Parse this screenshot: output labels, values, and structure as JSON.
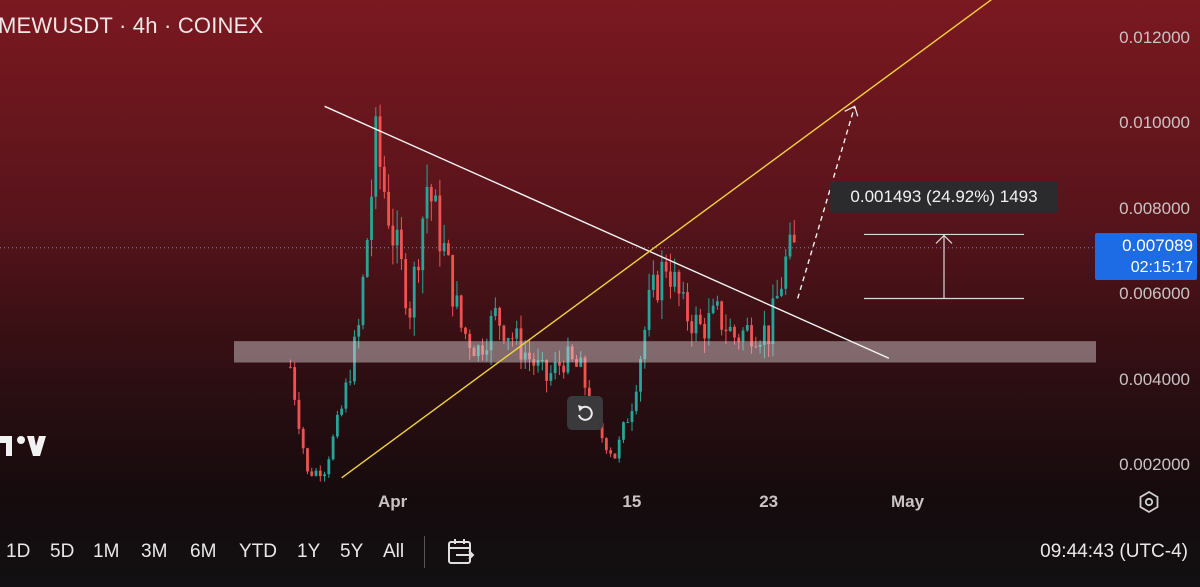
{
  "header": {
    "title": "MEWUSDT · 4h · COINEX"
  },
  "measure": {
    "label": "0.001493 (24.92%) 1493"
  },
  "last_price": {
    "price": "0.007089",
    "countdown": "02:15:17"
  },
  "bottom_bar": {
    "ranges": [
      "1D",
      "5D",
      "1M",
      "3M",
      "6M",
      "YTD",
      "1Y",
      "5Y",
      "All"
    ],
    "clock": "09:44:43 (UTC-4)"
  },
  "icons": {
    "logo": "tradingview-logo",
    "reset": "reset-icon",
    "settings": "gear-icon",
    "goto_date": "calendar-arrow-icon"
  },
  "colors": {
    "up": "#26a69a",
    "down": "#ef5350",
    "trendline": "#f5f5f5",
    "support_line": "#f2d13c",
    "accent": "#1e6be6"
  },
  "chart_data": {
    "type": "candlestick",
    "symbol": "MEWUSDT",
    "interval": "4h",
    "exchange": "COINEX",
    "ylim": [
      0.0016,
      0.0129
    ],
    "yticks": [
      "0.012000",
      "0.010000",
      "0.008000",
      "0.006000",
      "0.004000",
      "0.002000"
    ],
    "xticks": [
      "Apr",
      "15",
      "23",
      "May"
    ],
    "x_range": [
      "2024-03-26",
      "2024-05-03"
    ],
    "price_approx": [
      {
        "date": "2024-03-26",
        "price": 0.0043
      },
      {
        "date": "2024-03-27",
        "price": 0.0018
      },
      {
        "date": "2024-03-28",
        "price": 0.0019
      },
      {
        "date": "2024-03-29",
        "price": 0.0033
      },
      {
        "date": "2024-03-30",
        "price": 0.0052
      },
      {
        "date": "2024-03-31",
        "price": 0.0095
      },
      {
        "date": "2024-04-01",
        "price": 0.0074
      },
      {
        "date": "2024-04-02",
        "price": 0.0057
      },
      {
        "date": "2024-04-03",
        "price": 0.0086
      },
      {
        "date": "2024-04-04",
        "price": 0.007
      },
      {
        "date": "2024-04-05",
        "price": 0.0052
      },
      {
        "date": "2024-04-06",
        "price": 0.0047
      },
      {
        "date": "2024-04-07",
        "price": 0.0055
      },
      {
        "date": "2024-04-08",
        "price": 0.005
      },
      {
        "date": "2024-04-09",
        "price": 0.0045
      },
      {
        "date": "2024-04-10",
        "price": 0.004
      },
      {
        "date": "2024-04-11",
        "price": 0.0045
      },
      {
        "date": "2024-04-12",
        "price": 0.0042
      },
      {
        "date": "2024-04-13",
        "price": 0.0028
      },
      {
        "date": "2024-04-14",
        "price": 0.0022
      },
      {
        "date": "2024-04-15",
        "price": 0.0035
      },
      {
        "date": "2024-04-16",
        "price": 0.0058
      },
      {
        "date": "2024-04-17",
        "price": 0.0068
      },
      {
        "date": "2024-04-18",
        "price": 0.0056
      },
      {
        "date": "2024-04-19",
        "price": 0.0052
      },
      {
        "date": "2024-04-20",
        "price": 0.0055
      },
      {
        "date": "2024-04-21",
        "price": 0.005
      },
      {
        "date": "2024-04-22",
        "price": 0.0052
      },
      {
        "date": "2024-04-23",
        "price": 0.0051
      },
      {
        "date": "2024-04-24",
        "price": 0.0068
      },
      {
        "date": "2024-04-24T16",
        "price": 0.0071
      }
    ],
    "ohlc_extremes": {
      "high": 0.0098,
      "low": 0.0017
    },
    "drawings": {
      "descending_trendline": [
        {
          "date": "2024-03-28",
          "price": 0.0104
        },
        {
          "date": "2024-04-30",
          "price": 0.0045
        }
      ],
      "ascending_trendline": [
        {
          "date": "2024-03-29",
          "price": 0.0017
        },
        {
          "date": "2024-05-06",
          "price": 0.0129
        }
      ],
      "support_zone": [
        0.0044,
        0.0049
      ],
      "projection": [
        {
          "date": "2024-04-24T16",
          "price": 0.0059
        },
        {
          "date": "2024-04-28",
          "price": 0.0104
        }
      ],
      "price_range_measure": {
        "from": 0.0059,
        "to": 0.0074,
        "label": "0.001493 (24.92%) 1493"
      },
      "last_price_line": 0.007089
    }
  }
}
